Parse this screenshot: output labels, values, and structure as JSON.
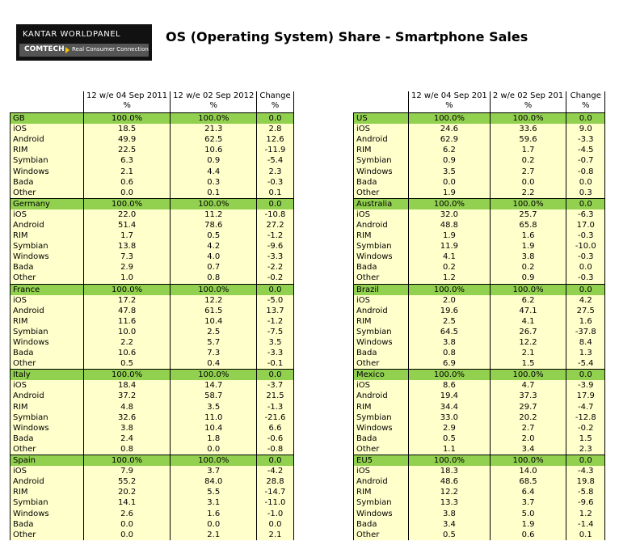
{
  "logo": {
    "brand": "KANTAR WORLDPANEL",
    "product": "COMTECH",
    "tagline": "Real Consumer Connection"
  },
  "title": "OS (Operating System) Share - Smartphone Sales",
  "tables": [
    {
      "columns": [
        {
          "label": "12 w/e 04 Sep 2011",
          "unit": "%"
        },
        {
          "label": "12 w/e 02 Sep 2012",
          "unit": "%"
        },
        {
          "label": "Change",
          "unit": "%"
        }
      ],
      "sections": [
        {
          "name": "GB",
          "total": [
            "100.0%",
            "100.0%",
            "0.0"
          ],
          "rows": [
            [
              "iOS",
              "18.5",
              "21.3",
              "2.8"
            ],
            [
              "Android",
              "49.9",
              "62.5",
              "12.6"
            ],
            [
              "RIM",
              "22.5",
              "10.6",
              "-11.9"
            ],
            [
              "Symbian",
              "6.3",
              "0.9",
              "-5.4"
            ],
            [
              "Windows",
              "2.1",
              "4.4",
              "2.3"
            ],
            [
              "Bada",
              "0.6",
              "0.3",
              "-0.3"
            ],
            [
              "Other",
              "0.0",
              "0.1",
              "0.1"
            ]
          ]
        },
        {
          "name": "Germany",
          "total": [
            "100.0%",
            "100.0%",
            "0.0"
          ],
          "rows": [
            [
              "iOS",
              "22.0",
              "11.2",
              "-10.8"
            ],
            [
              "Android",
              "51.4",
              "78.6",
              "27.2"
            ],
            [
              "RIM",
              "1.7",
              "0.5",
              "-1.2"
            ],
            [
              "Symbian",
              "13.8",
              "4.2",
              "-9.6"
            ],
            [
              "Windows",
              "7.3",
              "4.0",
              "-3.3"
            ],
            [
              "Bada",
              "2.9",
              "0.7",
              "-2.2"
            ],
            [
              "Other",
              "1.0",
              "0.8",
              "-0.2"
            ]
          ]
        },
        {
          "name": "France",
          "total": [
            "100.0%",
            "100.0%",
            "0.0"
          ],
          "rows": [
            [
              "iOS",
              "17.2",
              "12.2",
              "-5.0"
            ],
            [
              "Android",
              "47.8",
              "61.5",
              "13.7"
            ],
            [
              "RIM",
              "11.6",
              "10.4",
              "-1.2"
            ],
            [
              "Symbian",
              "10.0",
              "2.5",
              "-7.5"
            ],
            [
              "Windows",
              "2.2",
              "5.7",
              "3.5"
            ],
            [
              "Bada",
              "10.6",
              "7.3",
              "-3.3"
            ],
            [
              "Other",
              "0.5",
              "0.4",
              "-0.1"
            ]
          ]
        },
        {
          "name": "Italy",
          "total": [
            "100.0%",
            "100.0%",
            "0.0"
          ],
          "rows": [
            [
              "iOS",
              "18.4",
              "14.7",
              "-3.7"
            ],
            [
              "Android",
              "37.2",
              "58.7",
              "21.5"
            ],
            [
              "RIM",
              "4.8",
              "3.5",
              "-1.3"
            ],
            [
              "Symbian",
              "32.6",
              "11.0",
              "-21.6"
            ],
            [
              "Windows",
              "3.8",
              "10.4",
              "6.6"
            ],
            [
              "Bada",
              "2.4",
              "1.8",
              "-0.6"
            ],
            [
              "Other",
              "0.8",
              "0.0",
              "-0.8"
            ]
          ]
        },
        {
          "name": "Spain",
          "total": [
            "100.0%",
            "100.0%",
            "0.0"
          ],
          "rows": [
            [
              "iOS",
              "7.9",
              "3.7",
              "-4.2"
            ],
            [
              "Android",
              "55.2",
              "84.0",
              "28.8"
            ],
            [
              "RIM",
              "20.2",
              "5.5",
              "-14.7"
            ],
            [
              "Symbian",
              "14.1",
              "3.1",
              "-11.0"
            ],
            [
              "Windows",
              "2.6",
              "1.6",
              "-1.0"
            ],
            [
              "Bada",
              "0.0",
              "0.0",
              "0.0"
            ],
            [
              "Other",
              "0.0",
              "2.1",
              "2.1"
            ]
          ]
        }
      ]
    },
    {
      "columns": [
        {
          "label": "12 w/e 04 Sep 201",
          "unit": "%"
        },
        {
          "label": "2 w/e 02 Sep 201",
          "unit": "%"
        },
        {
          "label": "Change",
          "unit": "%"
        }
      ],
      "sections": [
        {
          "name": "US",
          "total": [
            "100.0%",
            "100.0%",
            "0.0"
          ],
          "rows": [
            [
              "iOS",
              "24.6",
              "33.6",
              "9.0"
            ],
            [
              "Android",
              "62.9",
              "59.6",
              "-3.3"
            ],
            [
              "RIM",
              "6.2",
              "1.7",
              "-4.5"
            ],
            [
              "Symbian",
              "0.9",
              "0.2",
              "-0.7"
            ],
            [
              "Windows",
              "3.5",
              "2.7",
              "-0.8"
            ],
            [
              "Bada",
              "0.0",
              "0.0",
              "0.0"
            ],
            [
              "Other",
              "1.9",
              "2.2",
              "0.3"
            ]
          ]
        },
        {
          "name": "Australia",
          "total": [
            "100.0%",
            "100.0%",
            "0.0"
          ],
          "rows": [
            [
              "iOS",
              "32.0",
              "25.7",
              "-6.3"
            ],
            [
              "Android",
              "48.8",
              "65.8",
              "17.0"
            ],
            [
              "RIM",
              "1.9",
              "1.6",
              "-0.3"
            ],
            [
              "Symbian",
              "11.9",
              "1.9",
              "-10.0"
            ],
            [
              "Windows",
              "4.1",
              "3.8",
              "-0.3"
            ],
            [
              "Bada",
              "0.2",
              "0.2",
              "0.0"
            ],
            [
              "Other",
              "1.2",
              "0.9",
              "-0.3"
            ]
          ]
        },
        {
          "name": "Brazil",
          "total": [
            "100.0%",
            "100.0%",
            "0.0"
          ],
          "rows": [
            [
              "iOS",
              "2.0",
              "6.2",
              "4.2"
            ],
            [
              "Android",
              "19.6",
              "47.1",
              "27.5"
            ],
            [
              "RIM",
              "2.5",
              "4.1",
              "1.6"
            ],
            [
              "Symbian",
              "64.5",
              "26.7",
              "-37.8"
            ],
            [
              "Windows",
              "3.8",
              "12.2",
              "8.4"
            ],
            [
              "Bada",
              "0.8",
              "2.1",
              "1.3"
            ],
            [
              "Other",
              "6.9",
              "1.5",
              "-5.4"
            ]
          ]
        },
        {
          "name": "Mexico",
          "total": [
            "100.0%",
            "100.0%",
            "0.0"
          ],
          "rows": [
            [
              "iOS",
              "8.6",
              "4.7",
              "-3.9"
            ],
            [
              "Android",
              "19.4",
              "37.3",
              "17.9"
            ],
            [
              "RIM",
              "34.4",
              "29.7",
              "-4.7"
            ],
            [
              "Symbian",
              "33.0",
              "20.2",
              "-12.8"
            ],
            [
              "Windows",
              "2.9",
              "2.7",
              "-0.2"
            ],
            [
              "Bada",
              "0.5",
              "2.0",
              "1.5"
            ],
            [
              "Other",
              "1.1",
              "3.4",
              "2.3"
            ]
          ]
        },
        {
          "name": "EU5",
          "total": [
            "100.0%",
            "100.0%",
            "0.0"
          ],
          "rows": [
            [
              "iOS",
              "18.3",
              "14.0",
              "-4.3"
            ],
            [
              "Android",
              "48.6",
              "68.5",
              "19.8"
            ],
            [
              "RIM",
              "12.2",
              "6.4",
              "-5.8"
            ],
            [
              "Symbian",
              "13.3",
              "3.7",
              "-9.6"
            ],
            [
              "Windows",
              "3.8",
              "5.0",
              "1.2"
            ],
            [
              "Bada",
              "3.4",
              "1.9",
              "-1.4"
            ],
            [
              "Other",
              "0.5",
              "0.6",
              "0.1"
            ]
          ]
        }
      ]
    }
  ]
}
